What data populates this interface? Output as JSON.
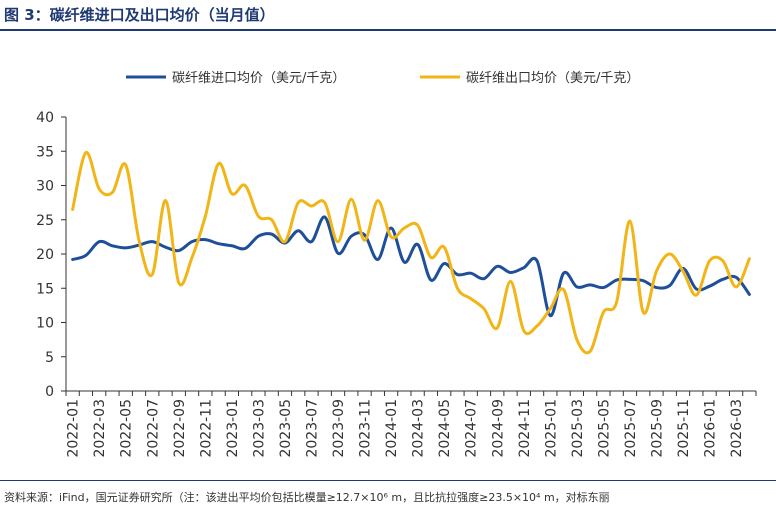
{
  "header": {
    "title": "图 3：碳纤维进口及出口均价（当月值）"
  },
  "footer": {
    "source": "资料来源：iFind，国元证券研究所（注：该进出平均价包括比模量≥12.7×10⁶ m，且比抗拉强度≥23.5×10⁴ m，对标东丽"
  },
  "colors": {
    "title": "#1f3a73",
    "import_series": "#1f4e9a",
    "export_series": "#f2b517"
  },
  "chart_data": {
    "type": "line",
    "title": "",
    "xlabel": "",
    "ylabel": "",
    "ylim": [
      0,
      40
    ],
    "yticks": [
      0,
      5,
      10,
      15,
      20,
      25,
      30,
      35,
      40
    ],
    "grid": false,
    "legend_position": "top",
    "x_tick_labels": [
      "2022-01",
      "2022-03",
      "2022-05",
      "2022-07",
      "2022-09",
      "2022-11",
      "2023-01",
      "2023-03",
      "2023-05",
      "2023-07",
      "2023-09",
      "2023-11",
      "2024-01",
      "2024-03",
      "2024-05",
      "2024-07",
      "2024-09",
      "2024-11",
      "2025-01",
      "2025-03",
      "2025-05",
      "2025-07",
      "2025-09",
      "2025-11",
      "2026-01",
      "2026-03"
    ],
    "categories": [
      "2022-01",
      "2022-02",
      "2022-03",
      "2022-04",
      "2022-05",
      "2022-06",
      "2022-07",
      "2022-08",
      "2022-09",
      "2022-10",
      "2022-11",
      "2022-12",
      "2023-01",
      "2023-02",
      "2023-03",
      "2023-04",
      "2023-05",
      "2023-06",
      "2023-07",
      "2023-08",
      "2023-09",
      "2023-10",
      "2023-11",
      "2023-12",
      "2024-01",
      "2024-02",
      "2024-03",
      "2024-04",
      "2024-05",
      "2024-06",
      "2024-07",
      "2024-08",
      "2024-09",
      "2024-10",
      "2024-11",
      "2024-12",
      "2025-01",
      "2025-02",
      "2025-03",
      "2025-04",
      "2025-05",
      "2025-06",
      "2025-07",
      "2025-08",
      "2025-09",
      "2025-10",
      "2025-11",
      "2025-12",
      "2026-01",
      "2026-02",
      "2026-03",
      "2026-04"
    ],
    "series": [
      {
        "name": "碳纤维进口均价（美元/千克）",
        "color": "#1f4e9a",
        "values": [
          19.2,
          19.8,
          21.8,
          21.2,
          20.9,
          21.3,
          21.8,
          21.0,
          20.5,
          21.8,
          22.1,
          21.5,
          21.2,
          20.8,
          22.6,
          22.9,
          21.6,
          23.4,
          21.8,
          25.4,
          20.1,
          22.6,
          22.8,
          19.2,
          23.8,
          18.8,
          21.4,
          16.2,
          18.6,
          17.0,
          17.2,
          16.4,
          18.2,
          17.3,
          18.0,
          19.0,
          11.0,
          17.2,
          15.2,
          15.5,
          15.1,
          16.2,
          16.3,
          16.1,
          15.1,
          15.4,
          17.9,
          14.9,
          15.3,
          16.3,
          16.6,
          14.1
        ]
      },
      {
        "name": "碳纤维出口均价（美元/千克）",
        "color": "#f2b517",
        "values": [
          26.5,
          34.8,
          29.5,
          29.0,
          33.0,
          22.0,
          17.0,
          27.8,
          15.8,
          19.5,
          25.5,
          33.2,
          28.8,
          30.0,
          25.5,
          25.0,
          21.8,
          27.5,
          27.0,
          27.5,
          21.8,
          28.0,
          22.0,
          27.8,
          22.5,
          23.8,
          24.2,
          19.5,
          21.0,
          15.0,
          13.5,
          12.0,
          9.2,
          16.0,
          8.8,
          9.5,
          12.0,
          14.8,
          7.5,
          5.8,
          11.5,
          13.0,
          24.8,
          11.5,
          17.5,
          20.0,
          17.5,
          14.0,
          19.0,
          19.0,
          15.2,
          19.3
        ]
      }
    ]
  }
}
